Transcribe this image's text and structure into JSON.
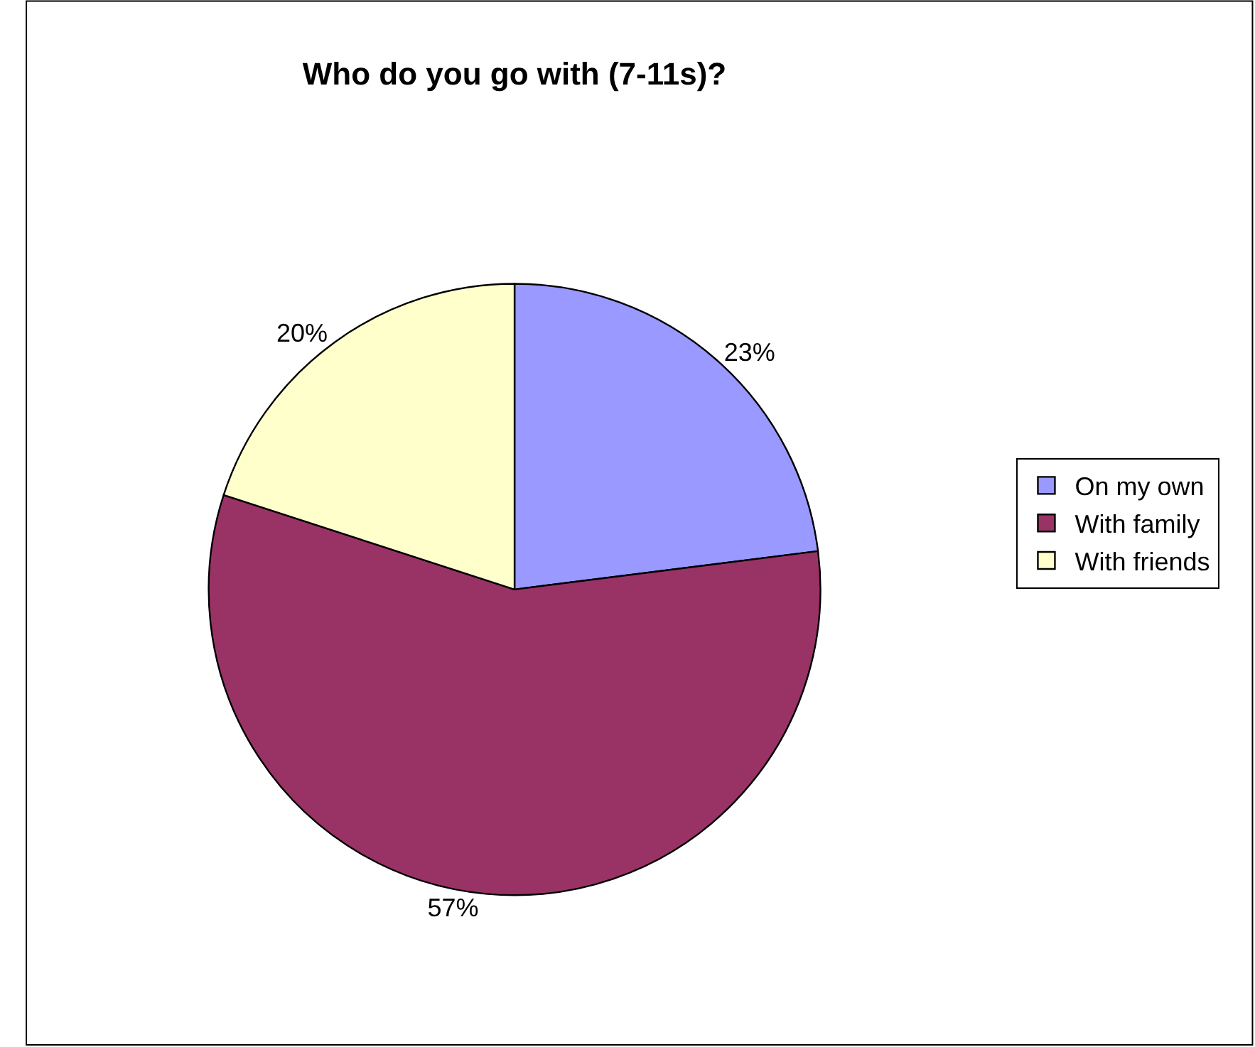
{
  "chart_data": {
    "type": "pie",
    "title": "Who do you go with (7-11s)?",
    "categories": [
      "On my own",
      "With family",
      "With friends"
    ],
    "values": [
      23,
      57,
      20
    ],
    "value_labels": [
      "23%",
      "57%",
      "20%"
    ],
    "colors": [
      "#9999ff",
      "#993366",
      "#ffffcc"
    ],
    "legend": "right"
  }
}
